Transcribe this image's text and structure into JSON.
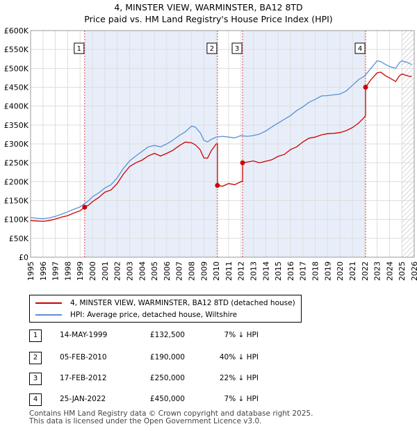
{
  "chart_data": {
    "type": "line",
    "title": "4, MINSTER VIEW, WARMINSTER, BA12 8TD",
    "subtitle": "Price paid vs. HM Land Registry's House Price Index (HPI)",
    "xlim": [
      1995,
      2026
    ],
    "ylim": [
      0,
      600000
    ],
    "x_ticks": [
      1995,
      1996,
      1997,
      1998,
      1999,
      2000,
      2001,
      2002,
      2003,
      2004,
      2005,
      2006,
      2007,
      2008,
      2009,
      2010,
      2011,
      2012,
      2013,
      2014,
      2015,
      2016,
      2017,
      2018,
      2019,
      2020,
      2021,
      2022,
      2023,
      2024,
      2025,
      2026
    ],
    "x_tick_labels": [
      "1995",
      "1996",
      "1997",
      "1998",
      "1999",
      "2000",
      "2001",
      "2002",
      "2003",
      "2004",
      "2005",
      "2006",
      "2007",
      "2008",
      "2009",
      "2010",
      "2011",
      "2012",
      "2013",
      "2014",
      "2015",
      "2016",
      "2017",
      "2018",
      "2019",
      "2020",
      "2021",
      "2022",
      "2023",
      "2024",
      "2025",
      "2026"
    ],
    "y_ticks": [
      0,
      50000,
      100000,
      150000,
      200000,
      250000,
      300000,
      350000,
      400000,
      450000,
      500000,
      550000,
      600000
    ],
    "y_tick_labels": [
      "£0",
      "£50K",
      "£100K",
      "£150K",
      "£200K",
      "£250K",
      "£300K",
      "£350K",
      "£400K",
      "£450K",
      "£500K",
      "£550K",
      "£600K"
    ],
    "shaded_spans": [
      [
        1999.37,
        2010.1
      ],
      [
        2012.13,
        2022.07
      ]
    ],
    "hatched_span": [
      2025.0,
      2026
    ],
    "series": [
      {
        "name": "4, MINSTER VIEW, WARMINSTER, BA12 8TD (detached house)",
        "color": "#cc0000",
        "points": [
          [
            1995,
            97000
          ],
          [
            1995.5,
            96000
          ],
          [
            1996,
            95000
          ],
          [
            1996.5,
            97000
          ],
          [
            1997,
            101000
          ],
          [
            1997.5,
            106000
          ],
          [
            1998,
            110000
          ],
          [
            1998.5,
            117000
          ],
          [
            1999,
            123000
          ],
          [
            1999.37,
            132500
          ],
          [
            1999.7,
            138000
          ],
          [
            2000,
            147000
          ],
          [
            2000.5,
            158000
          ],
          [
            2001,
            172000
          ],
          [
            2001.5,
            178000
          ],
          [
            2002,
            195000
          ],
          [
            2002.5,
            220000
          ],
          [
            2003,
            240000
          ],
          [
            2003.5,
            250000
          ],
          [
            2004,
            257000
          ],
          [
            2004.5,
            268000
          ],
          [
            2005,
            275000
          ],
          [
            2005.5,
            268000
          ],
          [
            2006,
            275000
          ],
          [
            2006.5,
            283000
          ],
          [
            2007,
            295000
          ],
          [
            2007.5,
            305000
          ],
          [
            2008,
            303000
          ],
          [
            2008.3,
            298000
          ],
          [
            2008.7,
            285000
          ],
          [
            2009,
            263000
          ],
          [
            2009.3,
            262000
          ],
          [
            2009.6,
            282000
          ],
          [
            2010.0,
            300000
          ],
          [
            2010.1,
            300000
          ],
          [
            2010.1,
            190000
          ],
          [
            2010.5,
            188000
          ],
          [
            2011,
            195000
          ],
          [
            2011.5,
            192000
          ],
          [
            2012.0,
            200000
          ],
          [
            2012.13,
            200000
          ],
          [
            2012.13,
            250000
          ],
          [
            2012.5,
            252000
          ],
          [
            2013,
            255000
          ],
          [
            2013.5,
            250000
          ],
          [
            2014,
            254000
          ],
          [
            2014.5,
            258000
          ],
          [
            2015,
            267000
          ],
          [
            2015.5,
            272000
          ],
          [
            2016,
            285000
          ],
          [
            2016.5,
            292000
          ],
          [
            2017,
            305000
          ],
          [
            2017.5,
            315000
          ],
          [
            2018,
            318000
          ],
          [
            2018.5,
            324000
          ],
          [
            2019,
            327000
          ],
          [
            2019.5,
            328000
          ],
          [
            2020,
            330000
          ],
          [
            2020.5,
            335000
          ],
          [
            2021,
            343000
          ],
          [
            2021.5,
            355000
          ],
          [
            2021.9,
            368000
          ],
          [
            2022.07,
            375000
          ],
          [
            2022.07,
            450000
          ],
          [
            2022.5,
            470000
          ],
          [
            2023,
            488000
          ],
          [
            2023.3,
            490000
          ],
          [
            2023.7,
            480000
          ],
          [
            2024,
            475000
          ],
          [
            2024.5,
            465000
          ],
          [
            2024.8,
            480000
          ],
          [
            2025,
            485000
          ],
          [
            2025.5,
            480000
          ],
          [
            2025.8,
            478000
          ]
        ]
      },
      {
        "name": "HPI: Average price, detached house, Wiltshire",
        "color": "#5b8fd6",
        "points": [
          [
            1995,
            105000
          ],
          [
            1995.5,
            103000
          ],
          [
            1996,
            102000
          ],
          [
            1996.5,
            104000
          ],
          [
            1997,
            108000
          ],
          [
            1997.5,
            114000
          ],
          [
            1998,
            120000
          ],
          [
            1998.5,
            127000
          ],
          [
            1999,
            133000
          ],
          [
            1999.37,
            142000
          ],
          [
            1999.7,
            150000
          ],
          [
            2000,
            160000
          ],
          [
            2000.5,
            170000
          ],
          [
            2001,
            183000
          ],
          [
            2001.5,
            192000
          ],
          [
            2002,
            210000
          ],
          [
            2002.5,
            235000
          ],
          [
            2003,
            255000
          ],
          [
            2003.5,
            268000
          ],
          [
            2004,
            280000
          ],
          [
            2004.5,
            292000
          ],
          [
            2005,
            296000
          ],
          [
            2005.5,
            292000
          ],
          [
            2006,
            300000
          ],
          [
            2006.5,
            310000
          ],
          [
            2007,
            322000
          ],
          [
            2007.5,
            332000
          ],
          [
            2008,
            347000
          ],
          [
            2008.3,
            345000
          ],
          [
            2008.7,
            330000
          ],
          [
            2009,
            310000
          ],
          [
            2009.3,
            305000
          ],
          [
            2009.6,
            312000
          ],
          [
            2010,
            318000
          ],
          [
            2010.5,
            320000
          ],
          [
            2011,
            318000
          ],
          [
            2011.5,
            316000
          ],
          [
            2012,
            322000
          ],
          [
            2012.5,
            320000
          ],
          [
            2013,
            322000
          ],
          [
            2013.5,
            326000
          ],
          [
            2014,
            334000
          ],
          [
            2014.5,
            345000
          ],
          [
            2015,
            355000
          ],
          [
            2015.5,
            365000
          ],
          [
            2016,
            375000
          ],
          [
            2016.5,
            388000
          ],
          [
            2017,
            398000
          ],
          [
            2017.5,
            410000
          ],
          [
            2018,
            418000
          ],
          [
            2018.5,
            427000
          ],
          [
            2019,
            428000
          ],
          [
            2019.5,
            430000
          ],
          [
            2020,
            432000
          ],
          [
            2020.5,
            440000
          ],
          [
            2021,
            455000
          ],
          [
            2021.5,
            470000
          ],
          [
            2022,
            480000
          ],
          [
            2022.5,
            500000
          ],
          [
            2023,
            520000
          ],
          [
            2023.3,
            518000
          ],
          [
            2023.7,
            510000
          ],
          [
            2024,
            505000
          ],
          [
            2024.5,
            500000
          ],
          [
            2024.8,
            515000
          ],
          [
            2025,
            520000
          ],
          [
            2025.5,
            515000
          ],
          [
            2025.8,
            510000
          ]
        ]
      }
    ],
    "sales": [
      {
        "label": "1",
        "x": 1999.37,
        "price": 132500
      },
      {
        "label": "2",
        "x": 2010.1,
        "price": 190000
      },
      {
        "label": "3",
        "x": 2012.13,
        "price": 250000
      },
      {
        "label": "4",
        "x": 2022.07,
        "price": 450000
      }
    ]
  },
  "title_line1": "4, MINSTER VIEW, WARMINSTER, BA12 8TD",
  "title_line2": "Price paid vs. HM Land Registry's House Price Index (HPI)",
  "legend": {
    "red_label": "4, MINSTER VIEW, WARMINSTER, BA12 8TD (detached house)",
    "blue_label": "HPI: Average price, detached house, Wiltshire",
    "red_color": "#cc0000",
    "blue_color": "#5b8fd6"
  },
  "table": [
    {
      "num": "1",
      "date": "14-MAY-1999",
      "price": "£132,500",
      "hpi": "7% ↓ HPI"
    },
    {
      "num": "2",
      "date": "05-FEB-2010",
      "price": "£190,000",
      "hpi": "40% ↓ HPI"
    },
    {
      "num": "3",
      "date": "17-FEB-2012",
      "price": "£250,000",
      "hpi": "22% ↓ HPI"
    },
    {
      "num": "4",
      "date": "25-JAN-2022",
      "price": "£450,000",
      "hpi": "7% ↓ HPI"
    }
  ],
  "footer_line1": "Contains HM Land Registry data © Crown copyright and database right 2025.",
  "footer_line2": "This data is licensed under the Open Government Licence v3.0."
}
